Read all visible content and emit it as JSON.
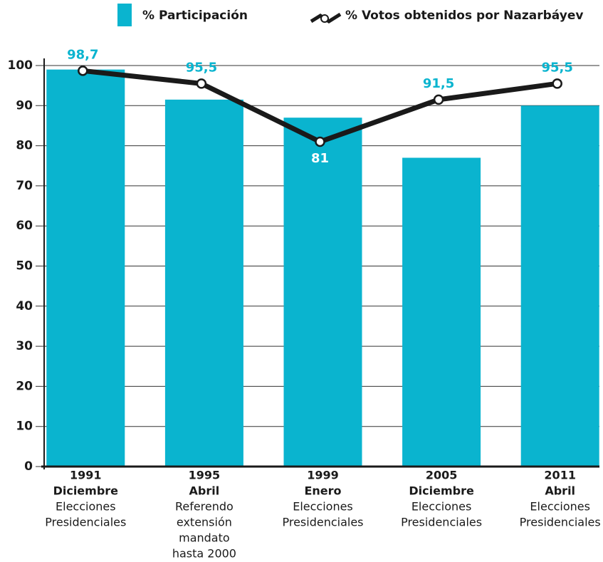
{
  "chart_data": {
    "type": "bar",
    "categories": [
      "1991",
      "1995",
      "1999",
      "2005",
      "2011"
    ],
    "months": [
      "Diciembre",
      "Abril",
      "Enero",
      "Diciembre",
      "Abril"
    ],
    "descriptions": [
      [
        "Elecciones",
        "Presidenciales"
      ],
      [
        "Referendo",
        "extensión",
        "mandato",
        "hasta 2000"
      ],
      [
        "Elecciones",
        "Presidenciales"
      ],
      [
        "Elecciones",
        "Presidenciales"
      ],
      [
        "Elecciones",
        "Presidenciales"
      ]
    ],
    "series": [
      {
        "name": "% Participación",
        "type": "bar",
        "color": "#0ab4cf",
        "values": [
          99,
          91.5,
          87,
          77,
          90
        ]
      },
      {
        "name": "% Votos obtenidos por Nazarbáyev",
        "type": "line",
        "color": "#1a1a1a",
        "label_color": "#0ab4cf",
        "values": [
          98.7,
          95.5,
          81,
          91.5,
          95.5
        ],
        "value_labels": [
          "98,7",
          "95,5",
          "81",
          "91,5",
          "95,5"
        ]
      }
    ],
    "ylim": [
      0,
      100
    ],
    "yticks": [
      0,
      10,
      20,
      30,
      40,
      50,
      60,
      70,
      80,
      90,
      100
    ],
    "grid": true
  }
}
